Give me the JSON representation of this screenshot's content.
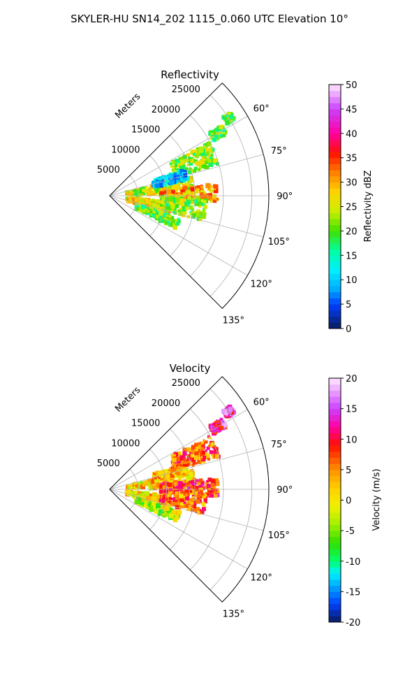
{
  "figure_title": "SKYLER-HU  SN14_202  1115_0.060 UTC Elevation 10°",
  "chart_data": [
    {
      "type": "heatmap",
      "projection": "polar-sector",
      "title": "Reflectivity",
      "theta_range_deg": [
        45,
        135
      ],
      "theta_ticks": [
        "60°",
        "75°",
        "90°",
        "105°",
        "120°",
        "135°"
      ],
      "r_max": 28000,
      "r_ticks": [
        "5000",
        "10000",
        "15000",
        "20000",
        "25000"
      ],
      "r_axis_label": "Meters",
      "grid": true,
      "colorbar": {
        "label": "Reflectivity dBZ",
        "min": 0,
        "max": 50,
        "ticks": [
          "0",
          "5",
          "10",
          "15",
          "20",
          "25",
          "30",
          "35",
          "40",
          "45",
          "50"
        ]
      },
      "palette": [
        [
          0,
          "#0a1a5c"
        ],
        [
          5,
          "#0040ff"
        ],
        [
          8,
          "#00aaff"
        ],
        [
          12,
          "#00f0ff"
        ],
        [
          16,
          "#00ffa0"
        ],
        [
          20,
          "#40e000"
        ],
        [
          24,
          "#c8f000"
        ],
        [
          28,
          "#ffd400"
        ],
        [
          32,
          "#ff8000"
        ],
        [
          36,
          "#ff1000"
        ],
        [
          40,
          "#ff00a0"
        ],
        [
          45,
          "#cc40ff"
        ],
        [
          50,
          "#ffe8ff"
        ]
      ],
      "echoes": [
        {
          "az": 68,
          "r": 16000,
          "dr": 4000,
          "daz": 6,
          "val": 22
        },
        {
          "az": 83,
          "r": 9000,
          "dr": 6000,
          "daz": 6,
          "val": 24
        },
        {
          "az": 89,
          "r": 14000,
          "dr": 5000,
          "daz": 5,
          "val": 30
        },
        {
          "az": 101,
          "r": 7000,
          "dr": 4000,
          "daz": 5,
          "val": 27
        },
        {
          "az": 112,
          "r": 9000,
          "dr": 4000,
          "daz": 4,
          "val": 20
        },
        {
          "az": 75,
          "r": 11000,
          "dr": 3000,
          "daz": 4,
          "val": 10
        },
        {
          "az": 98,
          "r": 13000,
          "dr": 4000,
          "daz": 7,
          "val": 22
        },
        {
          "az": 60,
          "r": 22000,
          "dr": 1200,
          "daz": 2,
          "val": 20
        },
        {
          "az": 57,
          "r": 25000,
          "dr": 700,
          "daz": 1.5,
          "val": 20
        }
      ]
    },
    {
      "type": "heatmap",
      "projection": "polar-sector",
      "title": "Velocity",
      "theta_range_deg": [
        45,
        135
      ],
      "theta_ticks": [
        "60°",
        "75°",
        "90°",
        "105°",
        "120°",
        "135°"
      ],
      "r_max": 28000,
      "r_ticks": [
        "5000",
        "10000",
        "15000",
        "20000",
        "25000"
      ],
      "r_axis_label": "Meters",
      "grid": true,
      "colorbar": {
        "label": "Velocity (m/s)",
        "min": -20,
        "max": 20,
        "ticks": [
          "-20",
          "-15",
          "-10",
          "-5",
          "0",
          "5",
          "10",
          "15",
          "20"
        ]
      },
      "palette": [
        [
          -20,
          "#0a1a5c"
        ],
        [
          -17,
          "#0040ff"
        ],
        [
          -14,
          "#00aaff"
        ],
        [
          -12,
          "#00f0ff"
        ],
        [
          -10,
          "#00ff70"
        ],
        [
          -7,
          "#30e000"
        ],
        [
          -4,
          "#a0f000"
        ],
        [
          -1,
          "#f0f000"
        ],
        [
          2,
          "#ffd000"
        ],
        [
          5,
          "#ff9000"
        ],
        [
          9,
          "#ff1000"
        ],
        [
          12,
          "#ff00a0"
        ],
        [
          15,
          "#cc40ff"
        ],
        [
          20,
          "#ffe8ff"
        ]
      ],
      "echoes": [
        {
          "az": 68,
          "r": 16000,
          "dr": 4000,
          "daz": 6,
          "val": 7
        },
        {
          "az": 83,
          "r": 9000,
          "dr": 6000,
          "daz": 6,
          "val": 1
        },
        {
          "az": 89,
          "r": 14000,
          "dr": 5000,
          "daz": 5,
          "val": 8
        },
        {
          "az": 101,
          "r": 7000,
          "dr": 4000,
          "daz": 5,
          "val": 1
        },
        {
          "az": 112,
          "r": 9000,
          "dr": 4000,
          "daz": 4,
          "val": -3
        },
        {
          "az": 75,
          "r": 11000,
          "dr": 3000,
          "daz": 4,
          "val": 3
        },
        {
          "az": 98,
          "r": 13000,
          "dr": 4000,
          "daz": 7,
          "val": 6
        },
        {
          "az": 60,
          "r": 22000,
          "dr": 1200,
          "daz": 2,
          "val": 13
        },
        {
          "az": 57,
          "r": 25000,
          "dr": 700,
          "daz": 1.5,
          "val": 13
        }
      ]
    }
  ]
}
